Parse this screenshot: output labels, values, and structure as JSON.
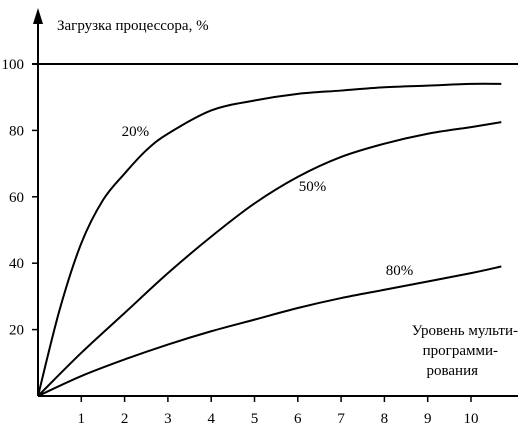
{
  "chart_data": {
    "type": "line",
    "ylabel": "Загрузка процессора, %",
    "xlabel_lines": [
      "Уровень мульти-",
      "программи-",
      "рования"
    ],
    "xlim": [
      0,
      10.7
    ],
    "ylim": [
      0,
      100
    ],
    "x_ticks": [
      "1",
      "2",
      "3",
      "4",
      "5",
      "6",
      "7",
      "8",
      "9",
      "10"
    ],
    "y_ticks": [
      "20",
      "40",
      "60",
      "80",
      "100"
    ],
    "reference_line": 100,
    "series": [
      {
        "name": "20%",
        "x": [
          0,
          0.5,
          1,
          1.5,
          2,
          2.5,
          3,
          4,
          5,
          6,
          7,
          8,
          9,
          10,
          10.7
        ],
        "y": [
          0,
          26,
          46,
          59,
          67,
          74,
          79,
          86,
          89,
          91,
          92,
          93,
          93.5,
          94,
          94
        ]
      },
      {
        "name": "50%",
        "x": [
          0,
          1,
          2,
          3,
          4,
          5,
          6,
          7,
          8,
          9,
          10,
          10.7
        ],
        "y": [
          0,
          13,
          25,
          37,
          48,
          58,
          66,
          72,
          76,
          79,
          81,
          82.5
        ]
      },
      {
        "name": "80%",
        "x": [
          0,
          1,
          2,
          3,
          4,
          5,
          6,
          7,
          8,
          9,
          10,
          10.7
        ],
        "y": [
          0,
          6,
          11,
          15.5,
          19.5,
          23,
          26.5,
          29.5,
          32,
          34.5,
          37,
          39
        ]
      }
    ]
  }
}
